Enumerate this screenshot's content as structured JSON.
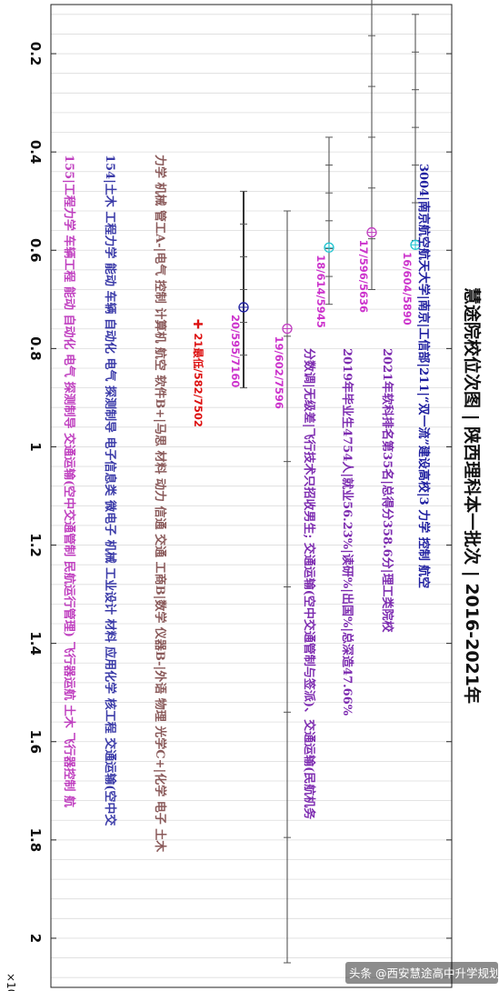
{
  "chart_data": {
    "type": "scatter",
    "title": "慧途院校位次图 | 陕西理科本一批次 | 2016-2021年",
    "axis": {
      "range": [
        0.1,
        2.1
      ],
      "ticks": [
        0.2,
        0.4,
        0.6,
        0.8,
        1,
        1.2,
        1.4,
        1.6,
        1.8,
        2
      ],
      "tick_labels": [
        "0.2",
        "0.4",
        "0.6",
        "0.8",
        "1",
        "1.2",
        "1.4",
        "1.6",
        "1.8",
        "2"
      ],
      "multiplier": "×10",
      "multiplier_exp": "4",
      "grid": true
    },
    "points": [
      {
        "label": "16/604/5890",
        "year": 2016,
        "score": 604,
        "rank": 5890,
        "color": "#22c4d0",
        "whisker": [
          0.12,
          0.58
        ]
      },
      {
        "label": "17/596/5636",
        "year": 2017,
        "score": 596,
        "rank": 5636,
        "color": "#c040c0",
        "whisker": [
          0.06,
          0.68
        ]
      },
      {
        "label": "18/614/5945",
        "year": 2018,
        "score": 614,
        "rank": 5945,
        "color": "#22c4d0",
        "whisker": [
          0.37,
          0.71
        ]
      },
      {
        "label": "19/602/7596",
        "year": 2019,
        "score": 602,
        "rank": 7596,
        "color": "#c040c0",
        "whisker": [
          0.52,
          2.05
        ]
      },
      {
        "label": "20/595/7160",
        "year": 2020,
        "score": 595,
        "rank": 7160,
        "color": "#2020a0",
        "whisker": [
          0.48,
          0.88
        ]
      },
      {
        "label": "21最低/582/7502",
        "year": 2021,
        "score": 582,
        "rank": 7502,
        "color": "#dd1111",
        "marker": "+"
      }
    ],
    "annotations": [
      {
        "text": "3004|南京航空航天大学|南京|工信部|211|“双一流”建设高校|3 力学 控制 航空",
        "color": "#2020a0"
      },
      {
        "text": "2021年软科排名第35名|总得分358.6分|理工类院校",
        "color": "#7d2bb0"
      },
      {
        "text": "2019年毕业生4754人|就业56.23%|读研%|出国%|总深造47.66%",
        "color": "#7d2bb0"
      },
      {
        "text": "分数调|无级差|飞行技术只招收男生; 交通运输(空中交通管制与签派)、交通运输(民航机务",
        "color": "#7d2bb0"
      },
      {
        "text": "力学 机械 管工A-|电气 控制 计算机 航空 软件B+|马思 材料 动力 信通 交通 工商B|数学 仪器B-|外语 物理 光学C+|化学 电子 土木",
        "color": "#8a5a5a"
      },
      {
        "text": "154|土木 工程力学 能动 车辆 自动化 电气 探测制导 电子信息类 微电子 机械 工业设计 材料 应用化学 核工程 交通运输(空中交",
        "color": "#3a3aa8"
      },
      {
        "text": "155|工程力学 车辆工程 能动 自动化 电气 探测制导 交通运输(空中交通管制 民航运行管理) 飞行器运航 土木 飞行器控制 航",
        "color": "#c040c0"
      }
    ],
    "watermark": "头条 @西安慧途高中升学规划"
  }
}
